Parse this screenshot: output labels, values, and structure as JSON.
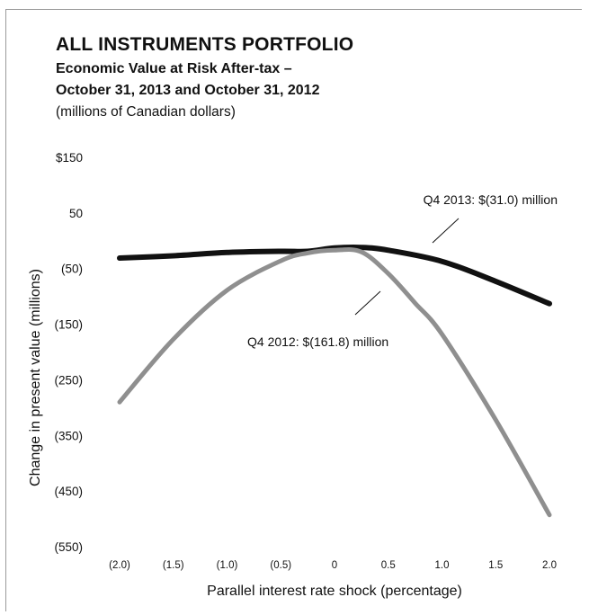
{
  "header": {
    "title": "ALL INSTRUMENTS PORTFOLIO",
    "subtitle_line1": "Economic Value at Risk After-tax –",
    "subtitle_line2": "October 31, 2013 and October 31, 2012",
    "units": "(millions of Canadian dollars)"
  },
  "chart_data": {
    "type": "line",
    "title": "ALL INSTRUMENTS PORTFOLIO",
    "subtitle": "Economic Value at Risk After-tax – October 31, 2013 and October 31, 2012",
    "xlabel": "Parallel interest rate shock (percentage)",
    "ylabel": "Change in present value (millions)",
    "x": [
      -2.0,
      -1.5,
      -1.0,
      -0.5,
      0,
      0.5,
      1.0,
      1.5,
      2.0
    ],
    "x_tick_labels": [
      "(2.0)",
      "(1.5)",
      "(1.0)",
      "(0.5)",
      "0",
      "0.5",
      "1.0",
      "1.5",
      "2.0"
    ],
    "y_tick_values": [
      150,
      50,
      -50,
      -150,
      -250,
      -350,
      -450,
      -550
    ],
    "y_tick_labels": [
      "$150",
      "50",
      "(50)",
      "(150)",
      "(250)",
      "(350)",
      "(450)",
      "(550)"
    ],
    "ylim": [
      -550,
      150
    ],
    "xlim": [
      -2.0,
      2.0
    ],
    "grid": false,
    "series": [
      {
        "label": "Q4 2013",
        "color": "#111111",
        "x": [
          -2.0,
          -1.5,
          -1.0,
          -0.5,
          -0.25,
          0,
          0.25,
          0.5,
          1.0,
          1.5,
          2.0
        ],
        "values": [
          -31,
          -27,
          -21,
          -19,
          -19,
          -13,
          -12,
          -17,
          -37,
          -73,
          -113
        ]
      },
      {
        "label": "Q4 2012",
        "color": "#8f8f8f",
        "x": [
          -2.0,
          -1.5,
          -1.0,
          -0.5,
          -0.25,
          0,
          0.25,
          0.5,
          0.75,
          1.0,
          1.5,
          2.0
        ],
        "values": [
          -290,
          -177,
          -89,
          -36,
          -22,
          -17,
          -20,
          -59,
          -112,
          -168,
          -322,
          -493
        ]
      }
    ],
    "annotations": [
      {
        "text": "Q4 2013: $(31.0) million",
        "series": "Q4 2013"
      },
      {
        "text": "Q4 2012: $(161.8) million",
        "series": "Q4 2012"
      }
    ]
  }
}
